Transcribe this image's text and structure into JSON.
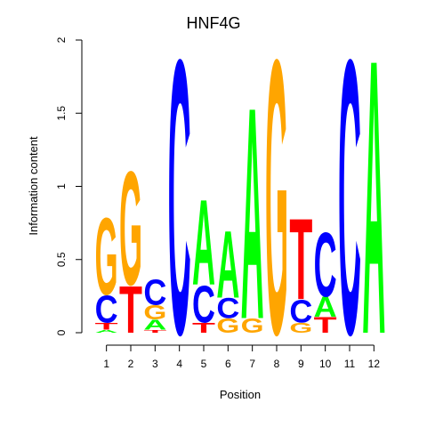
{
  "chart_data": {
    "type": "sequence-logo",
    "title": "HNF4G",
    "xlabel": "Position",
    "ylabel": "Information content",
    "ylim": [
      0,
      2
    ],
    "yticks": [
      "0",
      "0.5",
      "1",
      "1.5",
      "2"
    ],
    "positions": [
      "1",
      "2",
      "3",
      "4",
      "5",
      "6",
      "7",
      "8",
      "9",
      "10",
      "11",
      "12"
    ],
    "colors": {
      "A": "#00ff00",
      "C": "#0000ff",
      "G": "#ffa500",
      "T": "#ff0000"
    },
    "stacks": [
      [
        {
          "base": "A",
          "height": 0.02
        },
        {
          "base": "T",
          "height": 0.05
        },
        {
          "base": "C",
          "height": 0.19
        },
        {
          "base": "G",
          "height": 0.54
        }
      ],
      [
        {
          "base": "T",
          "height": 0.33
        },
        {
          "base": "G",
          "height": 0.8
        }
      ],
      [
        {
          "base": "T",
          "height": 0.02
        },
        {
          "base": "A",
          "height": 0.07
        },
        {
          "base": "G",
          "height": 0.1
        },
        {
          "base": "C",
          "height": 0.18
        }
      ],
      [
        {
          "base": "C",
          "height": 1.93
        }
      ],
      [
        {
          "base": "T",
          "height": 0.07
        },
        {
          "base": "C",
          "height": 0.26
        },
        {
          "base": "A",
          "height": 0.6
        }
      ],
      [
        {
          "base": "G",
          "height": 0.1
        },
        {
          "base": "C",
          "height": 0.14
        },
        {
          "base": "A",
          "height": 0.47
        }
      ],
      [
        {
          "base": "G",
          "height": 0.1
        },
        {
          "base": "A",
          "height": 1.49
        }
      ],
      [
        {
          "base": "G",
          "height": 1.93
        }
      ],
      [
        {
          "base": "G",
          "height": 0.07
        },
        {
          "base": "C",
          "height": 0.16
        },
        {
          "base": "T",
          "height": 0.57
        }
      ],
      [
        {
          "base": "T",
          "height": 0.11
        },
        {
          "base": "A",
          "height": 0.14
        },
        {
          "base": "C",
          "height": 0.45
        }
      ],
      [
        {
          "base": "C",
          "height": 1.93
        }
      ],
      [
        {
          "base": "A",
          "height": 1.93
        }
      ]
    ]
  }
}
